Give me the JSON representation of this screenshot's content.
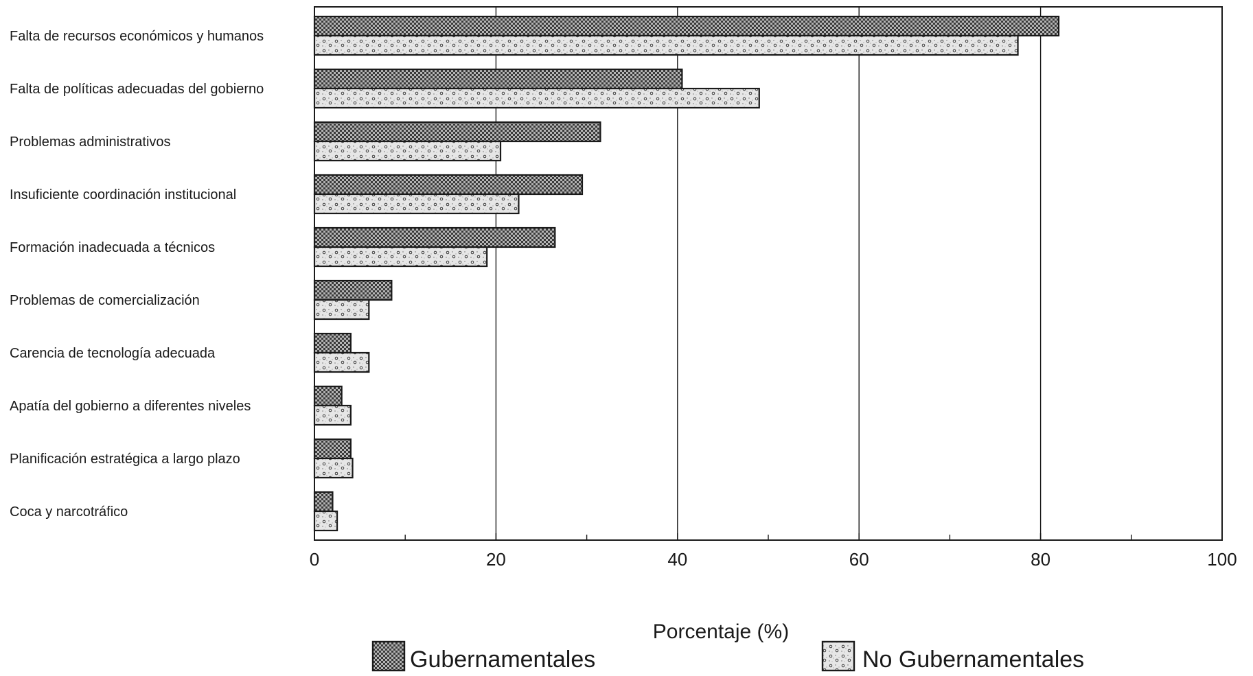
{
  "chart_data": {
    "type": "bar",
    "orientation": "horizontal",
    "title": "",
    "xlabel": "Porcentaje (%)",
    "ylabel": "",
    "xlim": [
      0,
      100
    ],
    "x_ticks": [
      0,
      20,
      40,
      60,
      80,
      100
    ],
    "x_minor_ticks": [
      10,
      30,
      50,
      70,
      90
    ],
    "grid": "vertical major gridlines",
    "legend_position": "bottom",
    "categories": [
      "Falta de recursos económicos y humanos",
      "Falta de políticas adecuadas del gobierno",
      "Problemas administrativos",
      "Insuficiente coordinación institucional",
      "Formación inadecuada a técnicos",
      "Problemas de comercialización",
      "Carencia de tecnología adecuada",
      "Apatía del gobierno a diferentes niveles",
      "Planificación estratégica a largo plazo",
      "Coca y narcotráfico"
    ],
    "series": [
      {
        "name": "Gubernamentales",
        "pattern": "dense crosshatch",
        "values": [
          82,
          40.5,
          31.5,
          29.5,
          26.5,
          8.5,
          4,
          3,
          4,
          2
        ]
      },
      {
        "name": "No Gubernamentales",
        "pattern": "sparse stipple",
        "values": [
          77.5,
          49,
          20.5,
          22.5,
          19,
          6,
          6,
          4,
          4.2,
          2.5
        ]
      }
    ],
    "colors": {
      "ink": "#1a1a1a",
      "gubernamentales_fill": "#9a9a9a",
      "no_gubernamentales_fill": "#e2e2e2"
    }
  }
}
